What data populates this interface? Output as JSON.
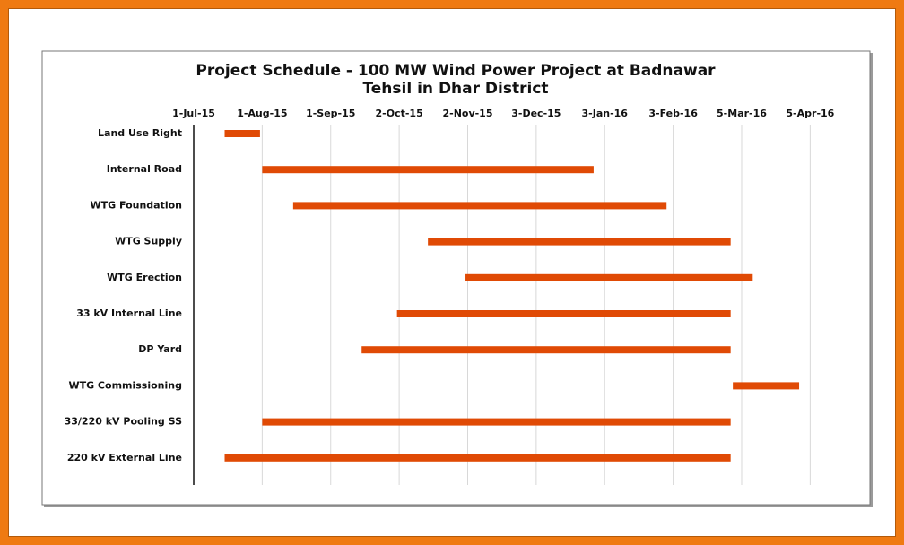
{
  "chart_data": {
    "type": "gantt",
    "title": [
      "Project Schedule - 100 MW Wind Power Project at Badnawar",
      "Tehsil in Dhar District"
    ],
    "categories": [
      "Land Use Right",
      "Internal Road",
      "WTG Foundation",
      "WTG Supply",
      "WTG Erection",
      "33 kV Internal Line",
      "DP Yard",
      "WTG Commissioning",
      "33/220 kV Pooling SS",
      "220 kV External Line"
    ],
    "start": [
      "2015-07-15",
      "2015-08-01",
      "2015-08-15",
      "2015-10-15",
      "2015-11-01",
      "2015-10-01",
      "2015-09-15",
      "2016-03-01",
      "2015-08-01",
      "2015-07-15"
    ],
    "end": [
      "2015-07-31",
      "2015-12-29",
      "2016-01-31",
      "2016-02-29",
      "2016-03-10",
      "2016-02-29",
      "2016-02-29",
      "2016-03-31",
      "2016-02-29",
      "2016-02-29"
    ],
    "color": "#e04a05",
    "xlim": [
      "2015-07-01",
      "2016-04-15"
    ],
    "xticks": [
      {
        "value": "2015-07-01",
        "label": "1-Jul-15"
      },
      {
        "value": "2015-08-01",
        "label": "1-Aug-15"
      },
      {
        "value": "2015-09-01",
        "label": "1-Sep-15"
      },
      {
        "value": "2015-10-02",
        "label": "2-Oct-15"
      },
      {
        "value": "2015-11-02",
        "label": "2-Nov-15"
      },
      {
        "value": "2015-12-03",
        "label": "3-Dec-15"
      },
      {
        "value": "2016-01-03",
        "label": "3-Jan-16"
      },
      {
        "value": "2016-02-03",
        "label": "3-Feb-16"
      },
      {
        "value": "2016-03-05",
        "label": "5-Mar-16"
      },
      {
        "value": "2016-04-05",
        "label": "5-Apr-16"
      }
    ],
    "grid": true
  }
}
